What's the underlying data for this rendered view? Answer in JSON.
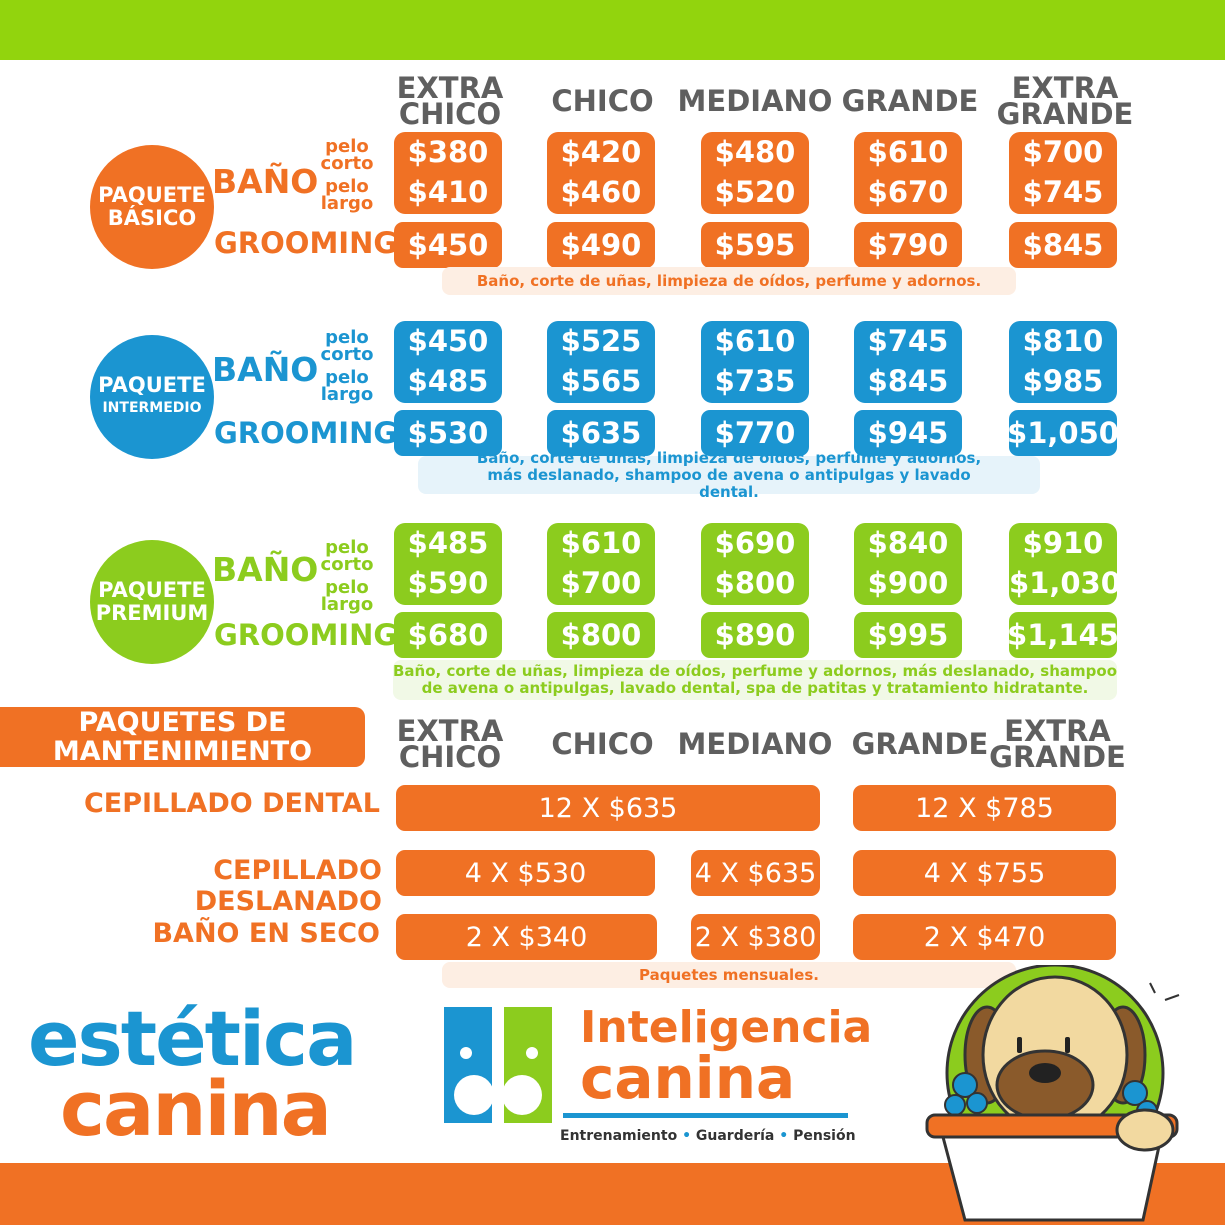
{
  "sizes": [
    "EXTRA\nCHICO",
    "CHICO",
    "MEDIANO",
    "GRANDE",
    "EXTRA\nGRANDE"
  ],
  "labels": {
    "bano": "BAÑO",
    "grooming": "GROOMING",
    "pelo_corto": "pelo\ncorto",
    "pelo_largo": "pelo\nlargo"
  },
  "packages": [
    {
      "line1": "PAQUETE",
      "line2": "BÁSICO",
      "color": "#f07124",
      "corto": [
        "$380",
        "$420",
        "$480",
        "$610",
        "$700"
      ],
      "largo": [
        "$410",
        "$460",
        "$520",
        "$670",
        "$745"
      ],
      "grooming": [
        "$450",
        "$490",
        "$595",
        "$790",
        "$845"
      ],
      "note": "Baño, corte de uñas, limpieza de oídos, perfume y adornos."
    },
    {
      "line1": "PAQUETE",
      "line2": "INTERMEDIO",
      "color": "#1b95d1",
      "corto": [
        "$450",
        "$525",
        "$610",
        "$745",
        "$810"
      ],
      "largo": [
        "$485",
        "$565",
        "$735",
        "$845",
        "$985"
      ],
      "grooming": [
        "$530",
        "$635",
        "$770",
        "$945",
        "$1,050"
      ],
      "note": "Baño, corte de uñas, limpieza de oídos, perfume y adornos, más deslanado, shampoo de avena o antipulgas y lavado dental."
    },
    {
      "line1": "PAQUETE",
      "line2": "PREMIUM",
      "color": "#8ccc1e",
      "corto": [
        "$485",
        "$610",
        "$690",
        "$840",
        "$910"
      ],
      "largo": [
        "$590",
        "$700",
        "$800",
        "$900",
        "$1,030"
      ],
      "grooming": [
        "$680",
        "$800",
        "$890",
        "$995",
        "$1,145"
      ],
      "note": "Baño, corte de uñas, limpieza de oídos, perfume y adornos, más deslanado, shampoo de avena o antipulgas, lavado dental, spa de patitas y tratamiento hidratante."
    }
  ],
  "maintenance": {
    "title": "PAQUETES DE\nMANTENIMIENTO",
    "rows": [
      {
        "label": "CEPILLADO DENTAL",
        "items": [
          "12 X $635",
          "12 X $785"
        ]
      },
      {
        "label": "CEPILLADO DESLANADO",
        "items": [
          "4 X $530",
          "4 X $635",
          "4 X $755"
        ]
      },
      {
        "label": "BAÑO EN SECO",
        "items": [
          "2 X $340",
          "2 X $380",
          "2 X $470"
        ]
      }
    ],
    "note": "Paquetes mensuales."
  },
  "brand": {
    "estetica_line1": "estética",
    "estetica_line2": "canina",
    "ic_line1": "Inteligencia",
    "ic_line2": "canina",
    "ic_services": [
      "Entrenamiento",
      "Guardería",
      "Pensión"
    ]
  },
  "colors": {
    "orange": "#f07124",
    "blue": "#1b95d1",
    "green": "#8ccc1e",
    "topbar": "#92d40d",
    "gray": "#5f5f5f"
  }
}
